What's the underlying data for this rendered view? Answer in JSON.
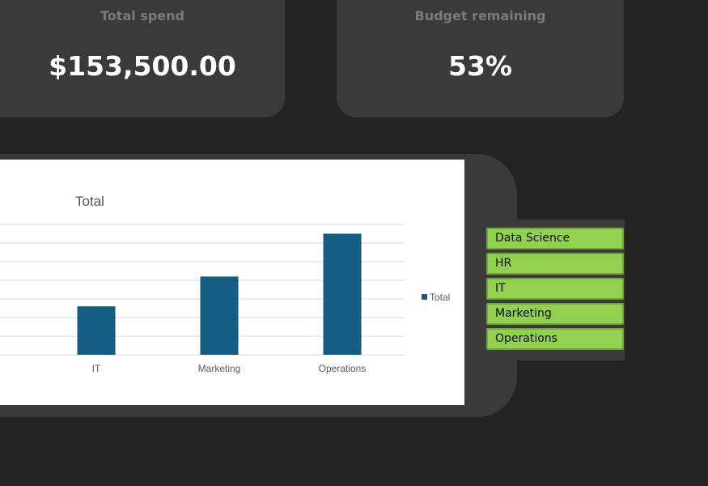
{
  "kpis": {
    "total_spend": {
      "title": "Total spend",
      "value": "$153,500.00"
    },
    "budget_remaining": {
      "title": "Budget remaining",
      "value": "53%"
    }
  },
  "chart_data": {
    "type": "bar",
    "title": "Total",
    "categories": [
      "IT",
      "Marketing",
      "Operations"
    ],
    "series": [
      {
        "name": "Total",
        "values": [
          26,
          42,
          65
        ],
        "color": "#155e83"
      }
    ],
    "ylim": [
      0,
      70
    ],
    "grid": true,
    "legend": "right"
  },
  "slicer": {
    "items": [
      "Data Science",
      "HR",
      "IT",
      "Marketing",
      "Operations"
    ],
    "selected_color": "#92d050"
  }
}
